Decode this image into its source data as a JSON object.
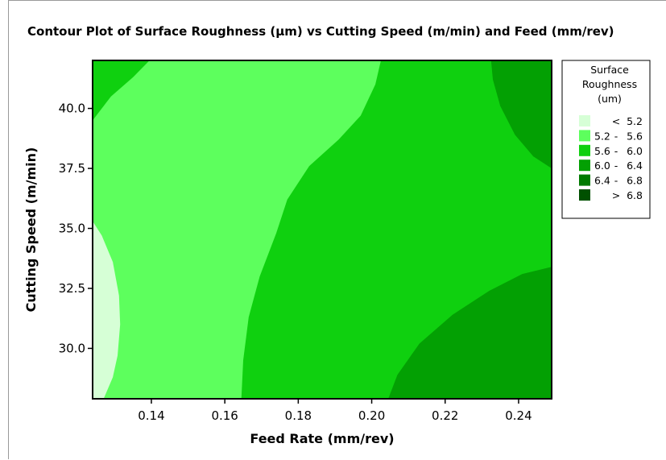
{
  "chart_data": {
    "type": "contour",
    "title": "Contour Plot of Surface Roughness (µm) vs Cutting Speed (m/min) and Feed (mm/rev)",
    "xlabel": "Feed Rate (mm/rev)",
    "ylabel": "Cutting Speed (m/min)",
    "xlim": [
      0.124,
      0.249
    ],
    "ylim": [
      27.9,
      42.0
    ],
    "x_ticks": [
      0.14,
      0.16,
      0.18,
      0.2,
      0.22,
      0.24
    ],
    "x_tick_labels": [
      "0.14",
      "0.16",
      "0.18",
      "0.20",
      "0.22",
      "0.24"
    ],
    "y_ticks": [
      30.0,
      32.5,
      35.0,
      37.5,
      40.0
    ],
    "y_tick_labels": [
      "30.0",
      "32.5",
      "35.0",
      "37.5",
      "40.0"
    ],
    "grid": false,
    "legend_position": "right",
    "legend": {
      "title_lines": [
        "Surface",
        "Roughness",
        "(um)"
      ],
      "levels": [
        {
          "op": "<",
          "lo": "",
          "hi": "5.2",
          "color": "#d6ffd6"
        },
        {
          "op": "-",
          "lo": "5.2",
          "hi": "5.6",
          "color": "#5dff5d"
        },
        {
          "op": "-",
          "lo": "5.6",
          "hi": "6.0",
          "color": "#0fd00f"
        },
        {
          "op": "-",
          "lo": "6.0",
          "hi": "6.4",
          "color": "#03a003"
        },
        {
          "op": "-",
          "lo": "6.4",
          "hi": "6.8",
          "color": "#007a00"
        },
        {
          "op": ">",
          "lo": "",
          "hi": "6.8",
          "color": "#005000"
        }
      ]
    },
    "regions": [
      {
        "level": "5.2 - 5.6",
        "color": "#5dff5d",
        "points": [
          [
            0.124,
            27.9
          ],
          [
            0.249,
            27.9
          ],
          [
            0.249,
            42.0
          ],
          [
            0.124,
            42.0
          ]
        ]
      },
      {
        "level": "< 5.2",
        "color": "#d6ffd6",
        "points": [
          [
            0.124,
            35.3
          ],
          [
            0.1265,
            34.7
          ],
          [
            0.1295,
            33.6
          ],
          [
            0.1312,
            32.2
          ],
          [
            0.1315,
            31.0
          ],
          [
            0.1308,
            29.7
          ],
          [
            0.1295,
            28.8
          ],
          [
            0.127,
            27.9
          ],
          [
            0.124,
            27.9
          ]
        ]
      },
      {
        "level": "5.6 - 6.0",
        "color": "#0fd00f",
        "points": [
          [
            0.1645,
            27.9
          ],
          [
            0.249,
            27.9
          ],
          [
            0.249,
            42.0
          ],
          [
            0.2025,
            42.0
          ],
          [
            0.201,
            41.0
          ],
          [
            0.197,
            39.7
          ],
          [
            0.191,
            38.7
          ],
          [
            0.183,
            37.6
          ],
          [
            0.177,
            36.2
          ],
          [
            0.174,
            34.8
          ],
          [
            0.1695,
            33.0
          ],
          [
            0.1665,
            31.3
          ],
          [
            0.165,
            29.5
          ]
        ]
      },
      {
        "level": "5.6 - 6.0",
        "color": "#0fd00f",
        "points": [
          [
            0.124,
            42.0
          ],
          [
            0.1395,
            42.0
          ],
          [
            0.135,
            41.3
          ],
          [
            0.129,
            40.5
          ],
          [
            0.124,
            39.5
          ]
        ]
      },
      {
        "level": "6.0 - 6.4",
        "color": "#03a003",
        "points": [
          [
            0.2045,
            27.9
          ],
          [
            0.249,
            27.9
          ],
          [
            0.249,
            33.4
          ],
          [
            0.241,
            33.1
          ],
          [
            0.232,
            32.4
          ],
          [
            0.222,
            31.4
          ],
          [
            0.213,
            30.2
          ],
          [
            0.207,
            28.9
          ]
        ]
      },
      {
        "level": "6.0 - 6.4",
        "color": "#03a003",
        "points": [
          [
            0.2325,
            42.0
          ],
          [
            0.249,
            42.0
          ],
          [
            0.249,
            37.5
          ],
          [
            0.244,
            38.0
          ],
          [
            0.239,
            38.9
          ],
          [
            0.235,
            40.1
          ],
          [
            0.233,
            41.2
          ]
        ]
      }
    ]
  }
}
